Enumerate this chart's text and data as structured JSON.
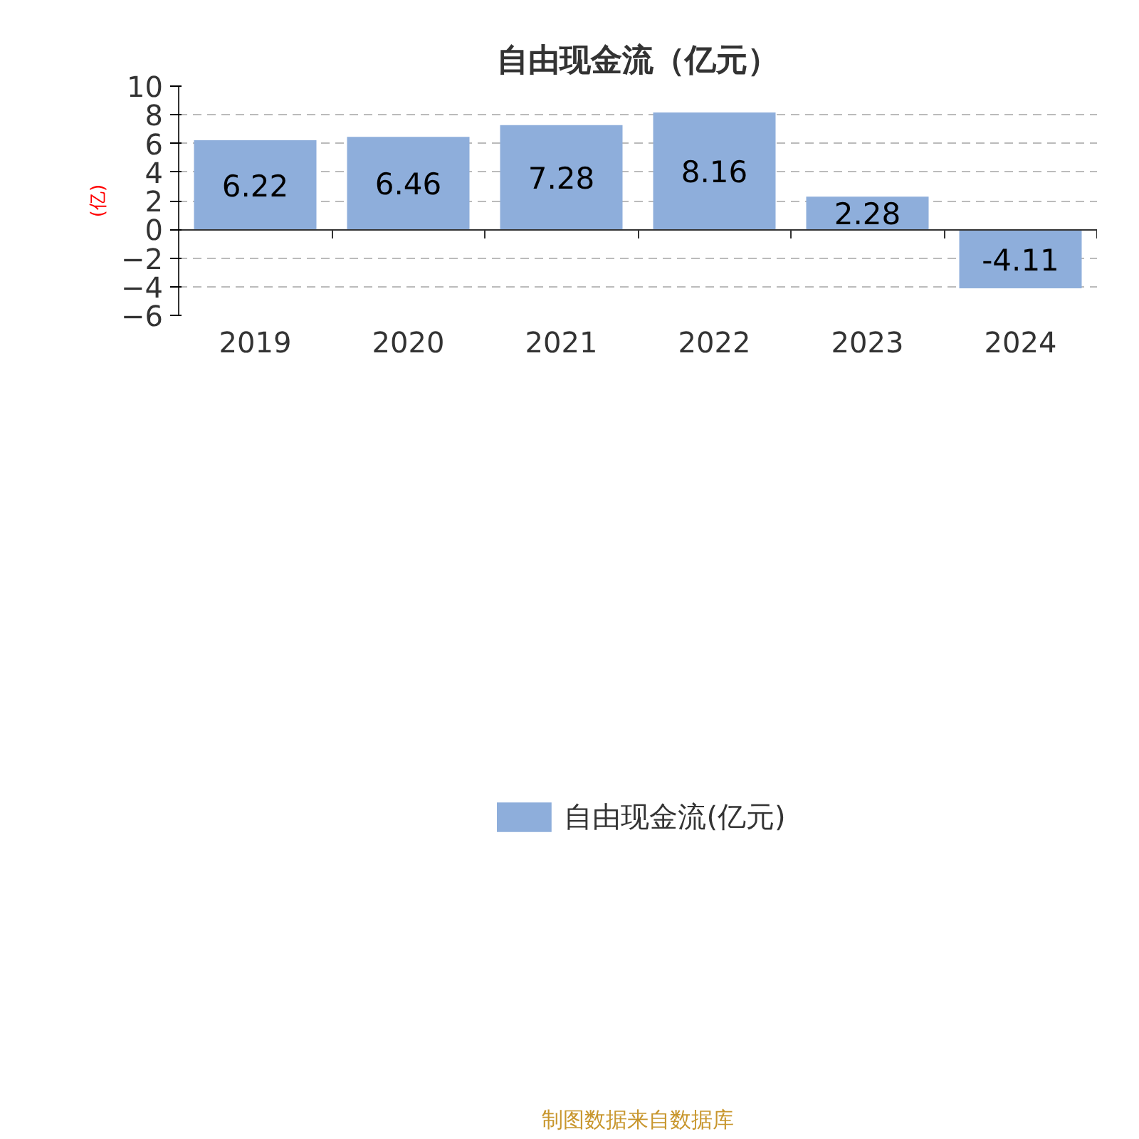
{
  "chart_data": {
    "type": "bar",
    "title": "自由现金流（亿元）",
    "ylabel": "(亿)",
    "categories": [
      "2019",
      "2020",
      "2021",
      "2022",
      "2023",
      "2024"
    ],
    "series": [
      {
        "name": "自由现金流(亿元)",
        "color": "#8eaedb",
        "values": [
          6.22,
          6.46,
          7.28,
          8.16,
          2.28,
          -4.11
        ]
      }
    ],
    "ylim": [
      -6,
      10
    ],
    "yticks": [
      -6,
      -4,
      -2,
      0,
      2,
      4,
      6,
      8,
      10
    ],
    "grid": "y",
    "data_labels": true,
    "legend": "bottom",
    "annotations": [
      "制图数据来自数据库"
    ]
  }
}
